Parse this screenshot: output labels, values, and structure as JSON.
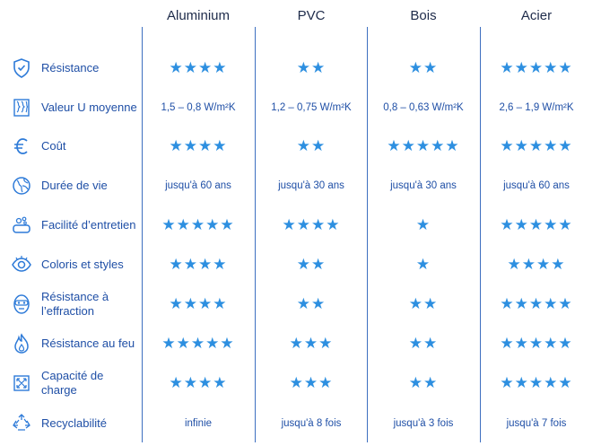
{
  "columns": [
    "Aluminium",
    "PVC",
    "Bois",
    "Acier"
  ],
  "rows": [
    {
      "icon": "shield-check-icon",
      "label": "Résistance",
      "cells": [
        {
          "stars": 4
        },
        {
          "stars": 2
        },
        {
          "stars": 2
        },
        {
          "stars": 5
        }
      ]
    },
    {
      "icon": "insulation-layers-icon",
      "label": "Valeur U moyenne",
      "cells": [
        {
          "text": "1,5 – 0,8 W/m²K"
        },
        {
          "text": "1,2 – 0,75 W/m²K"
        },
        {
          "text": "0,8 – 0,63 W/m²K"
        },
        {
          "text": "2,6 – 1,9 W/m²K"
        }
      ]
    },
    {
      "icon": "euro-icon",
      "label": "Coût",
      "cells": [
        {
          "stars": 4
        },
        {
          "stars": 2
        },
        {
          "stars": 5
        },
        {
          "stars": 5
        }
      ]
    },
    {
      "icon": "globe-icon",
      "label": "Durée de vie",
      "cells": [
        {
          "text": "jusqu'à 60 ans"
        },
        {
          "text": "jusqu'à 30 ans"
        },
        {
          "text": "jusqu'à 30 ans"
        },
        {
          "text": "jusqu'à 60 ans"
        }
      ]
    },
    {
      "icon": "sponge-bubbles-icon",
      "label": "Facilité d’entretien",
      "cells": [
        {
          "stars": 5
        },
        {
          "stars": 4
        },
        {
          "stars": 1
        },
        {
          "stars": 5
        }
      ]
    },
    {
      "icon": "eye-icon",
      "label": "Coloris et styles",
      "cells": [
        {
          "stars": 4
        },
        {
          "stars": 2
        },
        {
          "stars": 1
        },
        {
          "stars": 4
        }
      ]
    },
    {
      "icon": "burglar-mask-icon",
      "label": "Résistance à l’effraction",
      "cells": [
        {
          "stars": 4
        },
        {
          "stars": 2
        },
        {
          "stars": 2
        },
        {
          "stars": 5
        }
      ]
    },
    {
      "icon": "flame-icon",
      "label": "Résistance au feu",
      "cells": [
        {
          "stars": 5
        },
        {
          "stars": 3
        },
        {
          "stars": 2
        },
        {
          "stars": 5
        }
      ]
    },
    {
      "icon": "load-arrows-icon",
      "label": "Capacité de charge",
      "cells": [
        {
          "stars": 4
        },
        {
          "stars": 3
        },
        {
          "stars": 2
        },
        {
          "stars": 5
        }
      ]
    },
    {
      "icon": "recycle-icon",
      "label": "Recyclabilité",
      "cells": [
        {
          "text": "infinie"
        },
        {
          "text": "jusqu'à 8 fois"
        },
        {
          "text": "jusqu'à 3 fois"
        },
        {
          "text": "jusqu'à 7 fois"
        }
      ]
    }
  ],
  "colors": {
    "accent": "#2d8fe0",
    "label": "#1f4fa6",
    "divider": "#3d6fc0"
  }
}
